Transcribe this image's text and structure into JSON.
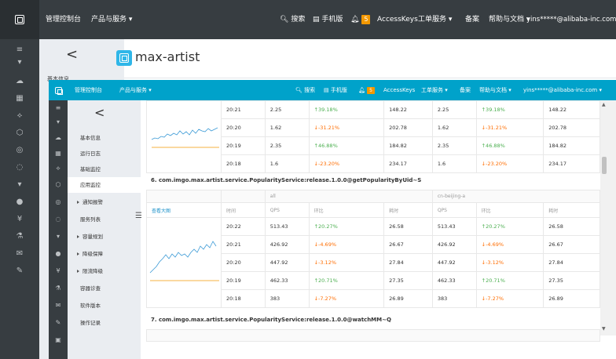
{
  "topbar": {
    "console": "管理控制台",
    "products": "产品与服务 ▾",
    "search": "搜索",
    "mobile": "手机版",
    "alert_count": "5",
    "accesskeys": "AccessKeys",
    "ticket": "工单服务 ▾",
    "record": "备案",
    "help": "帮助与文档 ▾",
    "user": "yins*****@alibaba-inc.com"
  },
  "outer_header": {
    "back": "<",
    "app_name": "max-artist",
    "basic_info_clip": "基本信息"
  },
  "inner_topbar": {
    "console": "管理控制台",
    "products": "产品与服务 ▾",
    "search": "搜索",
    "mobile": "手机版",
    "alert_count": "5",
    "accesskeys": "AccessKeys",
    "ticket": "工单服务 ▾",
    "record": "备案",
    "help": "帮助与文档 ▾",
    "user": "yins*****@alibaba-inc.com ▾"
  },
  "inner_nav": {
    "back": "<",
    "items": [
      {
        "label": "基本信息"
      },
      {
        "label": "运行日志"
      },
      {
        "label": "基础监控"
      },
      {
        "label": "应用监控"
      },
      {
        "label": "通知报警"
      },
      {
        "label": "服务列表"
      },
      {
        "label": "容量规划"
      },
      {
        "label": "降级保障"
      },
      {
        "label": "限流降级"
      },
      {
        "label": "容器诊查"
      },
      {
        "label": "软件版本"
      },
      {
        "label": "操作记录"
      }
    ]
  },
  "section5": {
    "rows": [
      {
        "time": "20:21",
        "qps": "2.25",
        "ratio": "↑39.18%",
        "dir": "up",
        "rt": "148.22",
        "qps2": "2.25",
        "ratio2": "↑39.18%",
        "rt2": "148.22"
      },
      {
        "time": "20:20",
        "qps": "1.62",
        "ratio": "↓-31.21%",
        "dir": "down",
        "rt": "202.78",
        "qps2": "1.62",
        "ratio2": "↓-31.21%",
        "rt2": "202.78"
      },
      {
        "time": "20:19",
        "qps": "2.35",
        "ratio": "↑46.88%",
        "dir": "up",
        "rt": "184.82",
        "qps2": "2.35",
        "ratio2": "↑46.88%",
        "rt2": "184.82"
      },
      {
        "time": "20:18",
        "qps": "1.6",
        "ratio": "↓-23.20%",
        "dir": "down",
        "rt": "234.17",
        "qps2": "1.6",
        "ratio2": "↓-23.20%",
        "rt2": "234.17"
      }
    ]
  },
  "section6": {
    "title": "6. com.imgo.max.artist.service.PopularityService:release.1.0.0@getPopularityByUid~S",
    "group_all": "all",
    "group_region": "cn-beijing-a",
    "detail_link": "查看大图",
    "col_time": "时间",
    "col_qps": "QPS",
    "col_ratio": "环比",
    "col_rt": "耗时",
    "rows": [
      {
        "time": "20:22",
        "qps": "513.43",
        "ratio": "↑20.27%",
        "dir": "up",
        "rt": "26.58",
        "qps2": "513.43",
        "ratio2": "↑20.27%",
        "rt2": "26.58"
      },
      {
        "time": "20:21",
        "qps": "426.92",
        "ratio": "↓-4.69%",
        "dir": "down",
        "rt": "26.67",
        "qps2": "426.92",
        "ratio2": "↓-4.69%",
        "rt2": "26.67"
      },
      {
        "time": "20:20",
        "qps": "447.92",
        "ratio": "↓-3.12%",
        "dir": "down",
        "rt": "27.84",
        "qps2": "447.92",
        "ratio2": "↓-3.12%",
        "rt2": "27.84"
      },
      {
        "time": "20:19",
        "qps": "462.33",
        "ratio": "↑20.71%",
        "dir": "up",
        "rt": "27.35",
        "qps2": "462.33",
        "ratio2": "↑20.71%",
        "rt2": "27.35"
      },
      {
        "time": "20:18",
        "qps": "383",
        "ratio": "↓-7.27%",
        "dir": "down",
        "rt": "26.89",
        "qps2": "383",
        "ratio2": "↓-7.27%",
        "rt2": "26.89"
      }
    ]
  },
  "section7": {
    "title": "7. com.imgo.max.artist.service.PopularityService:release.1.0.0@watchMM~Q"
  },
  "colors": {
    "topbar": "#373d41",
    "inner_topbar": "#00a2ca",
    "up": "#4caf50",
    "down": "#ff6d00",
    "sparkline": "#3b9ad6",
    "sparkline_base": "#f39800"
  }
}
